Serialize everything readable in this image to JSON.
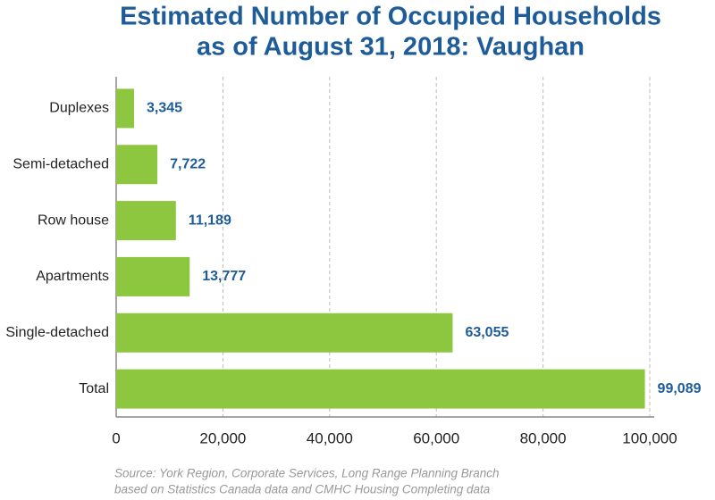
{
  "chart_data": {
    "type": "hbar",
    "title": [
      "Estimated Number of Occupied Households",
      "as of August 31, 2018: Vaughan"
    ],
    "categories": [
      "Duplexes",
      "Semi-detached",
      "Row house",
      "Apartments",
      "Single-detached",
      "Total"
    ],
    "values": [
      3345,
      7722,
      11189,
      13777,
      63055,
      99089
    ],
    "value_labels": [
      "3,345",
      "7,722",
      "11,189",
      "13,777",
      "63,055",
      "99,089"
    ],
    "color": "#8dc63f",
    "xlim": [
      0,
      100000
    ],
    "xticks": [
      0,
      {
        "value": 20000,
        "label": "20,000"
      },
      {
        "value": 40000,
        "label": "40,000"
      },
      {
        "value": 60000,
        "label": "60,000"
      },
      {
        "value": 80000,
        "label": "80,000"
      },
      {
        "value": 100000,
        "label": "100,000"
      }
    ],
    "grid": true,
    "source": [
      "Source: York Region, Corporate Services, Long Range Planning Branch",
      "based on Statistics Canada data and CMHC Housing Completing data"
    ]
  }
}
